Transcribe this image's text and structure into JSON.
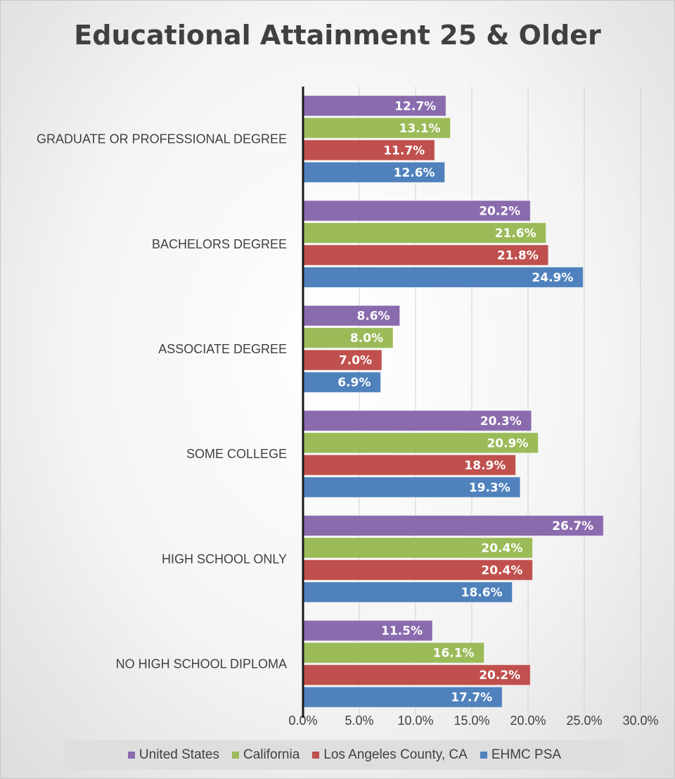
{
  "chart_data": {
    "type": "bar",
    "orientation": "horizontal",
    "title": "Educational Attainment 25 & Older",
    "categories": [
      "GRADUATE OR PROFESSIONAL DEGREE",
      "BACHELORS DEGREE",
      "ASSOCIATE DEGREE",
      "SOME COLLEGE",
      "HIGH SCHOOL ONLY",
      "NO HIGH SCHOOL DIPLOMA"
    ],
    "series": [
      {
        "name": "United States",
        "color": "#8a6bae",
        "values": [
          12.7,
          20.2,
          8.6,
          20.3,
          26.7,
          11.5
        ],
        "labels": [
          "12.7%",
          "20.2%",
          "8.6%",
          "20.3%",
          "26.7%",
          "11.5%"
        ]
      },
      {
        "name": "California",
        "color": "#9bbb59",
        "values": [
          13.1,
          21.6,
          8.0,
          20.9,
          20.4,
          16.1
        ],
        "labels": [
          "13.1%",
          "21.6%",
          "8.0%",
          "20.9%",
          "20.4%",
          "16.1%"
        ]
      },
      {
        "name": "Los Angeles County, CA",
        "color": "#c0504d",
        "values": [
          11.7,
          21.8,
          7.0,
          18.9,
          20.4,
          20.2
        ],
        "labels": [
          "11.7%",
          "21.8%",
          "7.0%",
          "18.9%",
          "20.4%",
          "20.2%"
        ]
      },
      {
        "name": "EHMC PSA",
        "color": "#4f81bd",
        "values": [
          12.6,
          24.9,
          6.9,
          19.3,
          18.6,
          17.7
        ],
        "labels": [
          "12.6%",
          "24.9%",
          "6.9%",
          "19.3%",
          "18.6%",
          "17.7%"
        ]
      }
    ],
    "xlim": [
      0,
      30
    ],
    "xticks": [
      "0.0%",
      "5.0%",
      "10.0%",
      "15.0%",
      "20.0%",
      "25.0%",
      "30.0%"
    ],
    "xlabel": "",
    "ylabel": "",
    "grid": true,
    "legend_position": "bottom"
  }
}
